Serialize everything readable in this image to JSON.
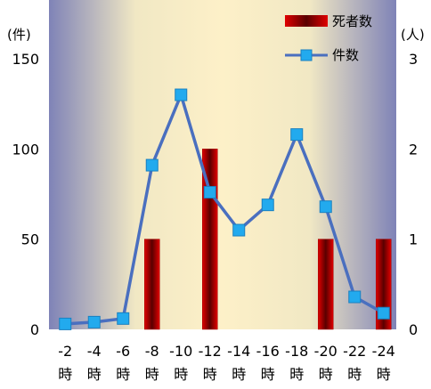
{
  "chart_data": {
    "type": "bar+line",
    "categories": [
      [
        "-2",
        "時"
      ],
      [
        "-4",
        "時"
      ],
      [
        "-6",
        "時"
      ],
      [
        "-8",
        "時"
      ],
      [
        "-10",
        "時"
      ],
      [
        "-12",
        "時"
      ],
      [
        "-14",
        "時"
      ],
      [
        "-16",
        "時"
      ],
      [
        "-18",
        "時"
      ],
      [
        "-20",
        "時"
      ],
      [
        "-22",
        "時"
      ],
      [
        "-24",
        "時"
      ]
    ],
    "y_left": {
      "unit": "(件)",
      "ticks": [
        "0",
        "50",
        "100",
        "150"
      ],
      "ylim": [
        0,
        150
      ]
    },
    "y_right": {
      "unit": "(人)",
      "ticks": [
        "0",
        "1",
        "2",
        "3"
      ],
      "ylim": [
        0,
        3
      ]
    },
    "series": [
      {
        "name": "死者数",
        "type": "bar",
        "axis": "right",
        "values": [
          0,
          0,
          0,
          1,
          0,
          2,
          0,
          0,
          0,
          1,
          0,
          1
        ]
      },
      {
        "name": "件数",
        "type": "line",
        "axis": "left",
        "values": [
          3,
          4,
          6,
          91,
          130,
          76,
          55,
          69,
          108,
          68,
          18,
          9
        ]
      }
    ],
    "legend_position": "top-right",
    "colors": {
      "bar_edge": "#cc0000",
      "bar_center": "#5a0000",
      "line": "#4a6fbf",
      "marker": "#22aaee",
      "bg_edge": "#7f83b7",
      "bg_center": "#fdf0c8"
    }
  }
}
